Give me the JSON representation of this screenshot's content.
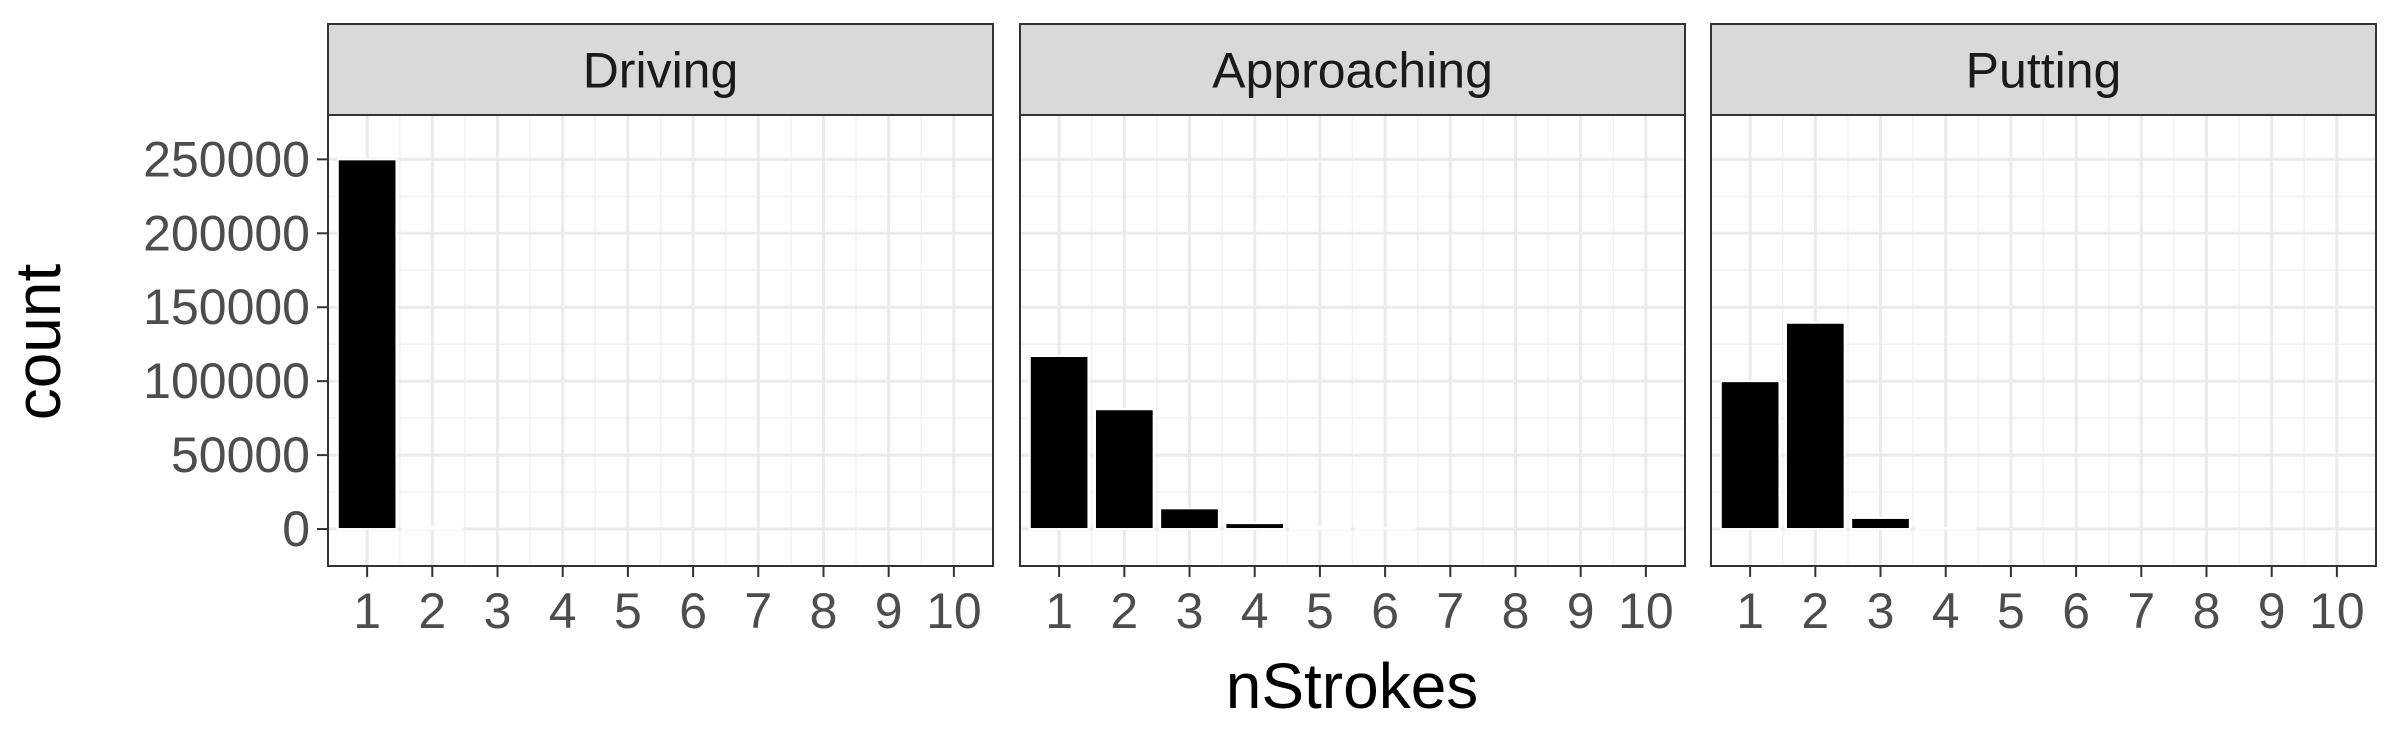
{
  "chart_data": {
    "type": "bar",
    "facet_by": "panel",
    "xlabel": "nStrokes",
    "ylabel": "count",
    "categories": [
      "1",
      "2",
      "3",
      "4",
      "5",
      "6",
      "7",
      "8",
      "9",
      "10"
    ],
    "ylim": [
      -25000,
      280000
    ],
    "yticks": [
      0,
      50000,
      100000,
      150000,
      200000,
      250000
    ],
    "ytick_labels": [
      "0",
      "50000",
      "100000",
      "150000",
      "200000",
      "250000"
    ],
    "grid": true,
    "theme": "bw",
    "bar_color": "#000000",
    "strip_fill": "#d9d9d9",
    "panels": [
      {
        "name": "Driving",
        "values": [
          250000,
          1200,
          0,
          0,
          0,
          0,
          0,
          0,
          0,
          0
        ]
      },
      {
        "name": "Approaching",
        "values": [
          117000,
          81000,
          14000,
          4000,
          1200,
          400,
          0,
          0,
          0,
          0
        ]
      },
      {
        "name": "Putting",
        "values": [
          100000,
          139500,
          7500,
          600,
          0,
          0,
          0,
          0,
          0,
          0
        ]
      }
    ]
  }
}
